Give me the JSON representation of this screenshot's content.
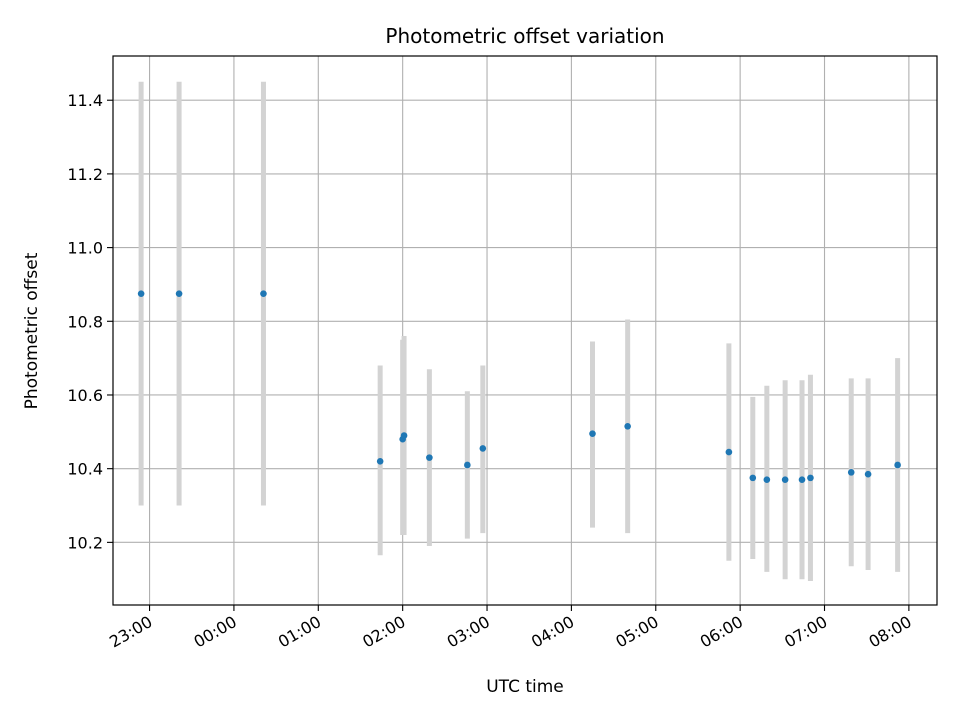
{
  "chart_data": {
    "type": "scatter",
    "title": "Photometric offset variation",
    "xlabel": "UTC time",
    "ylabel": "Photometric offset",
    "x_tick_labels": [
      "23:00",
      "00:00",
      "01:00",
      "02:00",
      "03:00",
      "04:00",
      "05:00",
      "06:00",
      "07:00",
      "08:00"
    ],
    "y_tick_labels": [
      "10.2",
      "10.4",
      "10.6",
      "10.8",
      "11.0",
      "11.2",
      "11.4"
    ],
    "ylim": [
      10.03,
      11.52
    ],
    "xlim_time": [
      "22:34",
      "08:20"
    ],
    "grid": true,
    "colors": {
      "point": "#1f77b4",
      "errorbar": "#d3d3d3",
      "grid": "#b0b0b0"
    },
    "points": [
      {
        "time": "22:54",
        "y": 10.875,
        "yerr_low": 10.3,
        "yerr_high": 11.45
      },
      {
        "time": "23:21",
        "y": 10.875,
        "yerr_low": 10.3,
        "yerr_high": 11.45
      },
      {
        "time": "00:21",
        "y": 10.875,
        "yerr_low": 10.3,
        "yerr_high": 11.45
      },
      {
        "time": "01:44",
        "y": 10.42,
        "yerr_low": 10.165,
        "yerr_high": 10.68
      },
      {
        "time": "02:00",
        "y": 10.48,
        "yerr_low": 10.22,
        "yerr_high": 10.75
      },
      {
        "time": "02:01",
        "y": 10.49,
        "yerr_low": 10.22,
        "yerr_high": 10.76
      },
      {
        "time": "02:19",
        "y": 10.43,
        "yerr_low": 10.19,
        "yerr_high": 10.67
      },
      {
        "time": "02:46",
        "y": 10.41,
        "yerr_low": 10.21,
        "yerr_high": 10.61
      },
      {
        "time": "02:57",
        "y": 10.455,
        "yerr_low": 10.225,
        "yerr_high": 10.68
      },
      {
        "time": "04:15",
        "y": 10.495,
        "yerr_low": 10.24,
        "yerr_high": 10.745
      },
      {
        "time": "04:40",
        "y": 10.515,
        "yerr_low": 10.225,
        "yerr_high": 10.805
      },
      {
        "time": "05:52",
        "y": 10.445,
        "yerr_low": 10.15,
        "yerr_high": 10.74
      },
      {
        "time": "06:09",
        "y": 10.375,
        "yerr_low": 10.155,
        "yerr_high": 10.595
      },
      {
        "time": "06:19",
        "y": 10.37,
        "yerr_low": 10.12,
        "yerr_high": 10.625
      },
      {
        "time": "06:32",
        "y": 10.37,
        "yerr_low": 10.1,
        "yerr_high": 10.64
      },
      {
        "time": "06:44",
        "y": 10.37,
        "yerr_low": 10.1,
        "yerr_high": 10.64
      },
      {
        "time": "06:50",
        "y": 10.375,
        "yerr_low": 10.095,
        "yerr_high": 10.655
      },
      {
        "time": "07:19",
        "y": 10.39,
        "yerr_low": 10.135,
        "yerr_high": 10.645
      },
      {
        "time": "07:31",
        "y": 10.385,
        "yerr_low": 10.125,
        "yerr_high": 10.645
      },
      {
        "time": "07:52",
        "y": 10.41,
        "yerr_low": 10.12,
        "yerr_high": 10.7
      }
    ]
  }
}
